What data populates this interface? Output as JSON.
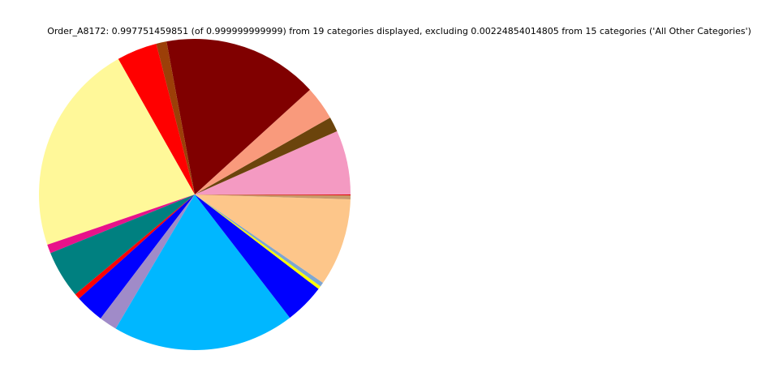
{
  "chart_data": {
    "type": "pie",
    "title": "Order_A8172: 0.997751459851 (of 0.999999999999) from 19 categories displayed, excluding 0.00224854014805 from 15 categories ('All Other Categories')",
    "start_angle_deg": 0,
    "direction": "counterclockwise",
    "legend": "none",
    "slices": [
      {
        "value": 0.0667,
        "color": "#f49ac2"
      },
      {
        "value": 0.0156,
        "color": "#6b440c"
      },
      {
        "value": 0.0353,
        "color": "#f99a7c"
      },
      {
        "value": 0.1614,
        "color": "#800000"
      },
      {
        "value": 0.0108,
        "color": "#9c3f08"
      },
      {
        "value": 0.0419,
        "color": "#ff0000"
      },
      {
        "value": 0.2206,
        "color": "#fff899"
      },
      {
        "value": 0.0092,
        "color": "#e8128a"
      },
      {
        "value": 0.0494,
        "color": "#008080"
      },
      {
        "value": 0.0058,
        "color": "#ff0000"
      },
      {
        "value": 0.03,
        "color": "#0000ff"
      },
      {
        "value": 0.0186,
        "color": "#a08bc8"
      },
      {
        "value": 0.1892,
        "color": "#00b7ff"
      },
      {
        "value": 0.0417,
        "color": "#0000ff"
      },
      {
        "value": 0.0033,
        "color": "#ffff00"
      },
      {
        "value": 0.0044,
        "color": "#7fa6d0"
      },
      {
        "value": 0.0911,
        "color": "#fdc68a"
      },
      {
        "value": 0.0042,
        "color": "#c8986a"
      },
      {
        "value": 0.0008,
        "color": "#e00000"
      }
    ]
  }
}
